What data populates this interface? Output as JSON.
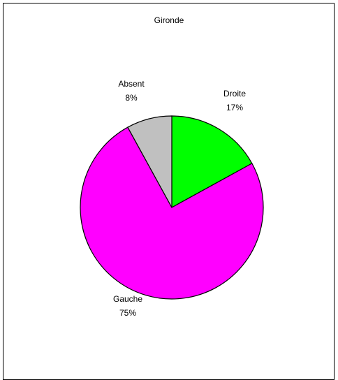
{
  "chart_data": {
    "type": "pie",
    "title": "Gironde",
    "slices": [
      {
        "label": "Droite",
        "percent_label": "17%",
        "value": 17,
        "color": "#00ff00"
      },
      {
        "label": "Gauche",
        "percent_label": "75%",
        "value": 75,
        "color": "#ff00ff"
      },
      {
        "label": "Absent",
        "percent_label": "8%",
        "value": 8,
        "color": "#c0c0c0"
      }
    ],
    "start": "top",
    "direction": "clockwise",
    "legend": "none",
    "slice_outline_color": "#000000"
  }
}
